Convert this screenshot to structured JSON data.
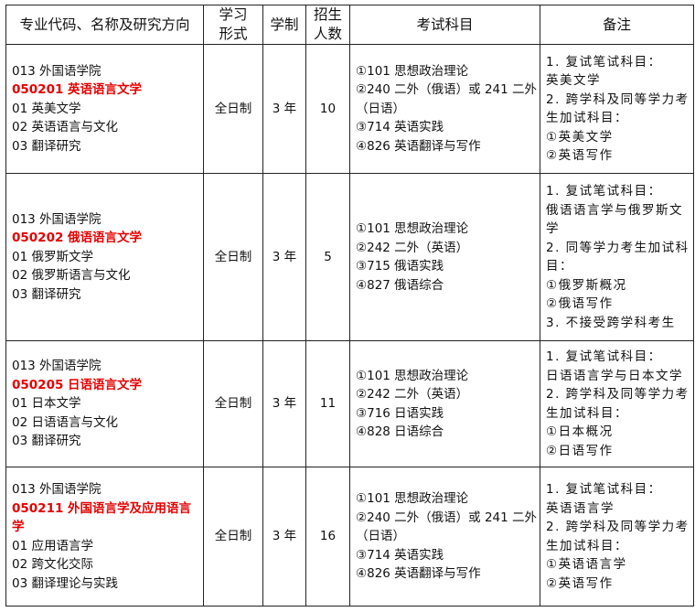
{
  "headers": [
    "专业代码、名称及研究方向",
    "学习形式",
    "学制",
    "招生人数",
    "考试科目",
    "备注"
  ],
  "rows": [
    {
      "dept": "013 外国语学院",
      "major": "050201 英语语言文学",
      "directions": [
        "01 英美文学",
        "02 英语语言与文化",
        "03 翻译研究"
      ],
      "mode": "全日制",
      "years": "3 年",
      "quota": "10",
      "exams": [
        "①101 思想政治理论",
        "②240 二外（俄语）或 241 二外（日语）",
        "③714 英语实践",
        "④826 英语翻译与写作"
      ],
      "notes": [
        "1. 复试笔试科目：",
        "英美文学",
        "2. 跨学科及同等学力考生加试科目：",
        "①英美文学",
        "②英语写作"
      ]
    },
    {
      "dept": "013 外国语学院",
      "major": "050202 俄语语言文学",
      "directions": [
        "01 俄罗斯文学",
        "02 俄罗斯语言与文化",
        "03 翻译研究"
      ],
      "mode": "全日制",
      "years": "3 年",
      "quota": "5",
      "exams": [
        "①101 思想政治理论",
        "②242 二外（英语）",
        "③715 俄语实践",
        "④827 俄语综合"
      ],
      "notes": [
        "1. 复试笔试科目：",
        "俄语语言学与俄罗斯文学",
        "2. 同等学力考生加试科目：",
        "①俄罗斯概况",
        "②俄语写作",
        "3. 不接受跨学科考生"
      ]
    },
    {
      "dept": "013 外国语学院",
      "major": "050205 日语语言文学",
      "directions": [
        "01 日本文学",
        "02 日语语言与文化",
        "03 翻译研究"
      ],
      "mode": "全日制",
      "years": "3 年",
      "quota": "11",
      "exams": [
        "①101 思想政治理论",
        "②242 二外（英语）",
        "③716 日语实践",
        "④828 日语综合"
      ],
      "notes": [
        "1. 复试笔试科目：",
        "日语语言学与日本文学",
        "2. 跨学科及同等学力考生加试科目：",
        "①日本概况",
        "②日语写作"
      ]
    },
    {
      "dept": "013 外国语学院",
      "major": "050211 外国语言学及应用语言学",
      "directions": [
        "01 应用语言学",
        "02 跨文化交际",
        "03 翻译理论与实践"
      ],
      "mode": "全日制",
      "years": "3 年",
      "quota": "16",
      "exams": [
        "①101 思想政治理论",
        "②240 二外（俄语）或 241 二外（日语）",
        "③714 英语实践",
        "④826 英语翻译与写作"
      ],
      "notes": [
        "1. 复试笔试科目：",
        "英语语言学",
        "2. 跨学科及同等学力考生加试科目：",
        "①英语语言学",
        "②英语写作"
      ]
    }
  ]
}
